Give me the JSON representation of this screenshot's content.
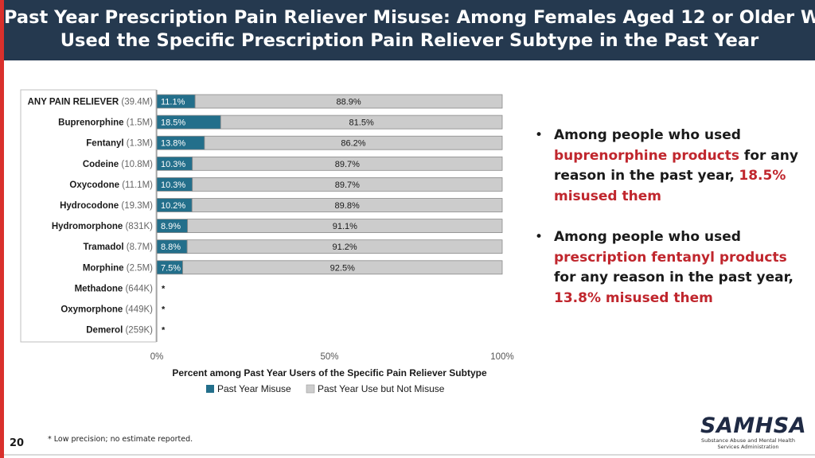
{
  "header": {
    "title_line1": "Past Year Prescription Pain Reliever Misuse: Among Females Aged 12 or Older Who",
    "title_line2": "Used the Specific Prescription Pain Reliever Subtype in the Past Year"
  },
  "colors": {
    "misuse": "#236f8b",
    "not_misuse": "#cccccc",
    "accent_red": "#c0262d",
    "header_bg": "#25394f"
  },
  "chart_data": {
    "type": "bar",
    "orientation": "horizontal",
    "stacked": true,
    "categories": [
      {
        "name": "ANY PAIN RELIEVER",
        "n": "(39.4M)",
        "bold": true
      },
      {
        "name": "Buprenorphine",
        "n": "(1.5M)"
      },
      {
        "name": "Fentanyl",
        "n": "(1.3M)"
      },
      {
        "name": "Codeine",
        "n": "(10.8M)"
      },
      {
        "name": "Oxycodone",
        "n": "(11.1M)"
      },
      {
        "name": "Hydrocodone",
        "n": "(19.3M)"
      },
      {
        "name": "Hydromorphone",
        "n": "(831K)"
      },
      {
        "name": "Tramadol",
        "n": "(8.7M)"
      },
      {
        "name": "Morphine",
        "n": "(2.5M)"
      },
      {
        "name": "Methadone",
        "n": "(644K)"
      },
      {
        "name": "Oxymorphone",
        "n": "(449K)"
      },
      {
        "name": "Demerol",
        "n": "(259K)"
      }
    ],
    "series": [
      {
        "name": "Past Year Misuse",
        "values": [
          11.1,
          18.5,
          13.8,
          10.3,
          10.3,
          10.2,
          8.9,
          8.8,
          7.5,
          null,
          null,
          null
        ],
        "labels": [
          "11.1%",
          "18.5%",
          "13.8%",
          "10.3%",
          "10.3%",
          "10.2%",
          "8.9%",
          "8.8%",
          "7.5%",
          "*",
          "*",
          "*"
        ]
      },
      {
        "name": "Past Year Use but Not Misuse",
        "values": [
          88.9,
          81.5,
          86.2,
          89.7,
          89.7,
          89.8,
          91.1,
          91.2,
          92.5,
          null,
          null,
          null
        ],
        "labels": [
          "88.9%",
          "81.5%",
          "86.2%",
          "89.7%",
          "89.7%",
          "89.8%",
          "91.1%",
          "91.2%",
          "92.5%",
          "",
          "",
          ""
        ]
      }
    ],
    "xlim": [
      0,
      100
    ],
    "xticks": [
      "0%",
      "50%",
      "100%"
    ],
    "xlabel": "Percent among Past Year Users of the Specific Pain Reliever Subtype",
    "legend": [
      "Past Year Misuse",
      "Past Year Use but Not Misuse"
    ]
  },
  "bullets": [
    {
      "p1": "Among people who used",
      "h1": "buprenorphine products",
      "p2": " for any reason in the past year,",
      "h2": "18.5% misused them"
    },
    {
      "p1": "Among people who used",
      "h1": "prescription fentanyl products",
      "p2": " for any reason in the past year,",
      "h2": "13.8% misused them"
    }
  ],
  "footnote": "* Low precision; no estimate reported.",
  "page_number": "20",
  "logo": {
    "mark": "SAMHSA",
    "line1": "Substance Abuse and Mental Health",
    "line2": "Services Administration"
  }
}
